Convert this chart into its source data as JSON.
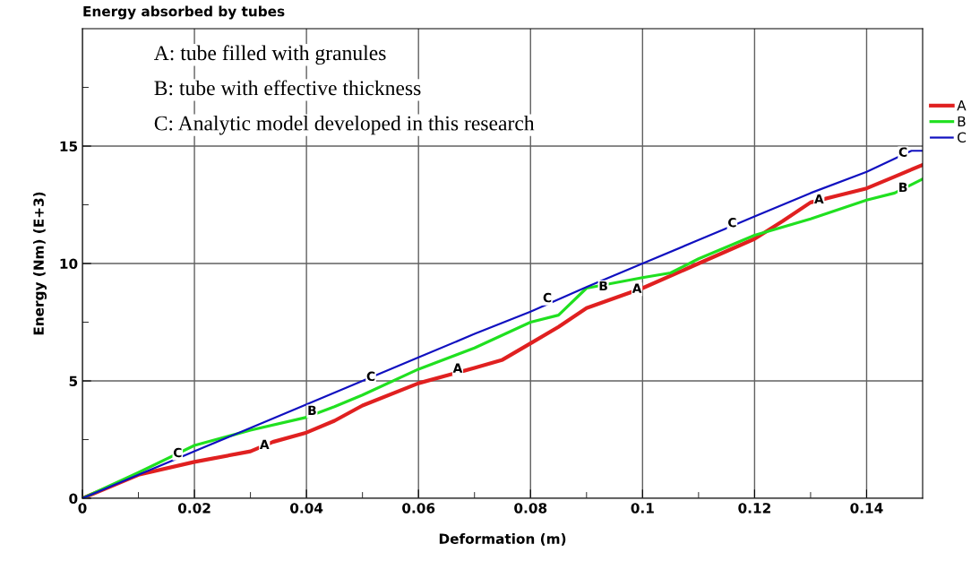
{
  "chart_data": {
    "type": "line",
    "title": "Energy absorbed by tubes",
    "xlabel": "Deformation (m)",
    "ylabel": "Energy (Nm) (E+3)",
    "xlim": [
      0,
      0.15
    ],
    "ylim": [
      0,
      20
    ],
    "xticks": [
      0,
      0.02,
      0.04,
      0.06,
      0.08,
      0.1,
      0.12,
      0.14,
      {
        "value": 0.01,
        "label": null
      },
      {
        "value": 0.03,
        "label": null
      },
      {
        "value": 0.05,
        "label": null
      },
      {
        "value": 0.07,
        "label": null
      },
      {
        "value": 0.09,
        "label": null
      },
      {
        "value": 0.11,
        "label": null
      },
      {
        "value": 0.13,
        "label": null
      }
    ],
    "yticks": [
      0,
      5,
      10,
      15,
      {
        "value": 2.5,
        "label": null
      },
      {
        "value": 7.5,
        "label": null
      },
      {
        "value": 12.5,
        "label": null
      },
      {
        "value": 17.5,
        "label": null
      }
    ],
    "grid": true,
    "legend": "right",
    "marker": "none",
    "line_style": "solid",
    "series": [
      {
        "name": "A",
        "color": "#e02020",
        "x": [
          0,
          0.01,
          0.02,
          0.03,
          0.034,
          0.04,
          0.045,
          0.05,
          0.06,
          0.07,
          0.075,
          0.08,
          0.085,
          0.09,
          0.1,
          0.11,
          0.12,
          0.125,
          0.13,
          0.135,
          0.14,
          0.145,
          0.15
        ],
        "values": [
          0,
          1.0,
          1.55,
          2.0,
          2.4,
          2.8,
          3.3,
          3.95,
          4.9,
          5.55,
          5.9,
          6.6,
          7.3,
          8.1,
          8.95,
          10.0,
          11.05,
          11.8,
          12.6,
          12.9,
          13.2,
          13.7,
          14.2
        ]
      },
      {
        "name": "B",
        "color": "#20e020",
        "x": [
          0,
          0.01,
          0.02,
          0.03,
          0.04,
          0.045,
          0.05,
          0.06,
          0.07,
          0.08,
          0.085,
          0.09,
          0.1,
          0.105,
          0.11,
          0.12,
          0.13,
          0.14,
          0.145,
          0.15
        ],
        "values": [
          0,
          1.1,
          2.25,
          2.9,
          3.45,
          3.9,
          4.4,
          5.5,
          6.4,
          7.5,
          7.8,
          8.95,
          9.4,
          9.6,
          10.2,
          11.2,
          11.9,
          12.7,
          13.0,
          13.6
        ]
      },
      {
        "name": "C",
        "color": "#1010c0",
        "x": [
          0,
          0.01,
          0.02,
          0.03,
          0.04,
          0.05,
          0.06,
          0.07,
          0.08,
          0.09,
          0.1,
          0.11,
          0.12,
          0.13,
          0.14,
          0.148,
          0.15
        ],
        "values": [
          0,
          1.0,
          2.0,
          3.0,
          4.0,
          5.0,
          6.0,
          7.0,
          7.95,
          9.0,
          10.0,
          11.0,
          12.0,
          13.0,
          13.9,
          14.8,
          14.8
        ]
      }
    ],
    "annotations": [
      "A: tube filled with granules",
      "B: tube with effective thickness",
      "C: Analytic model developed in this research",
      {
        "text": "C",
        "x": 0.017,
        "y": 1.9
      },
      {
        "text": "A",
        "x": 0.0325,
        "y": 2.25
      },
      {
        "text": "B",
        "x": 0.041,
        "y": 3.7
      },
      {
        "text": "C",
        "x": 0.0515,
        "y": 5.15
      },
      {
        "text": "A",
        "x": 0.067,
        "y": 5.5
      },
      {
        "text": "C",
        "x": 0.083,
        "y": 8.5
      },
      {
        "text": "B",
        "x": 0.093,
        "y": 9.0
      },
      {
        "text": "A",
        "x": 0.099,
        "y": 8.9
      },
      {
        "text": "C",
        "x": 0.116,
        "y": 11.7
      },
      {
        "text": "A",
        "x": 0.1315,
        "y": 12.7
      },
      {
        "text": "B",
        "x": 0.1465,
        "y": 13.2
      },
      {
        "text": "C",
        "x": 0.1465,
        "y": 14.7
      }
    ]
  }
}
